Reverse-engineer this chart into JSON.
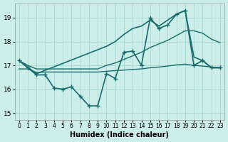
{
  "xlabel": "Humidex (Indice chaleur)",
  "bg_color": "#cceee8",
  "line_color": "#1a6b6b",
  "grid_color": "#aad8d4",
  "xlim": [
    -0.5,
    23.5
  ],
  "ylim": [
    14.7,
    19.6
  ],
  "yticks": [
    15,
    16,
    17,
    18,
    19
  ],
  "xticks": [
    0,
    1,
    2,
    3,
    4,
    5,
    6,
    7,
    8,
    9,
    10,
    11,
    12,
    13,
    14,
    15,
    16,
    17,
    18,
    19,
    20,
    21,
    22,
    23
  ],
  "series": [
    {
      "x": [
        0,
        1,
        2,
        3,
        4,
        5,
        6,
        7,
        8,
        9,
        10,
        11,
        12,
        13,
        14,
        15,
        16,
        17,
        18,
        19,
        20,
        21,
        22,
        23
      ],
      "y": [
        17.2,
        17.0,
        16.85,
        16.85,
        16.85,
        16.85,
        16.85,
        16.85,
        16.85,
        16.85,
        17.0,
        17.1,
        17.25,
        17.4,
        17.55,
        17.75,
        17.9,
        18.05,
        18.25,
        18.45,
        18.45,
        18.35,
        18.1,
        17.95
      ],
      "marker": null,
      "linewidth": 1.0
    },
    {
      "x": [
        0,
        1,
        2,
        3,
        4,
        5,
        6,
        7,
        8,
        9,
        10,
        11,
        12,
        13,
        14,
        15,
        16,
        17,
        18,
        19,
        20,
        21,
        22,
        23
      ],
      "y": [
        17.2,
        16.9,
        16.6,
        16.6,
        16.05,
        16.0,
        16.1,
        15.7,
        15.3,
        15.3,
        16.65,
        16.45,
        17.55,
        17.6,
        17.0,
        19.0,
        18.55,
        18.7,
        19.15,
        19.3,
        17.0,
        17.2,
        16.9,
        16.9
      ],
      "marker": "+",
      "linewidth": 1.2
    },
    {
      "x": [
        0,
        1,
        2,
        3,
        4,
        5,
        6,
        7,
        8,
        9,
        10,
        11,
        12,
        13,
        14,
        15,
        16,
        17,
        18,
        19,
        20,
        21,
        22,
        23
      ],
      "y": [
        16.85,
        16.85,
        16.7,
        16.72,
        16.72,
        16.72,
        16.72,
        16.72,
        16.72,
        16.72,
        16.75,
        16.78,
        16.8,
        16.83,
        16.85,
        16.9,
        16.93,
        16.97,
        17.02,
        17.05,
        17.0,
        16.97,
        16.93,
        16.9
      ],
      "marker": null,
      "linewidth": 1.0
    },
    {
      "x": [
        0,
        2,
        10,
        11,
        12,
        13,
        14,
        15,
        16,
        17,
        18,
        19,
        20,
        21,
        22,
        23
      ],
      "y": [
        17.2,
        16.65,
        17.8,
        18.0,
        18.3,
        18.55,
        18.65,
        18.9,
        18.65,
        18.9,
        19.15,
        19.3,
        17.35,
        17.2,
        16.9,
        16.9
      ],
      "marker": null,
      "linewidth": 1.2
    }
  ]
}
